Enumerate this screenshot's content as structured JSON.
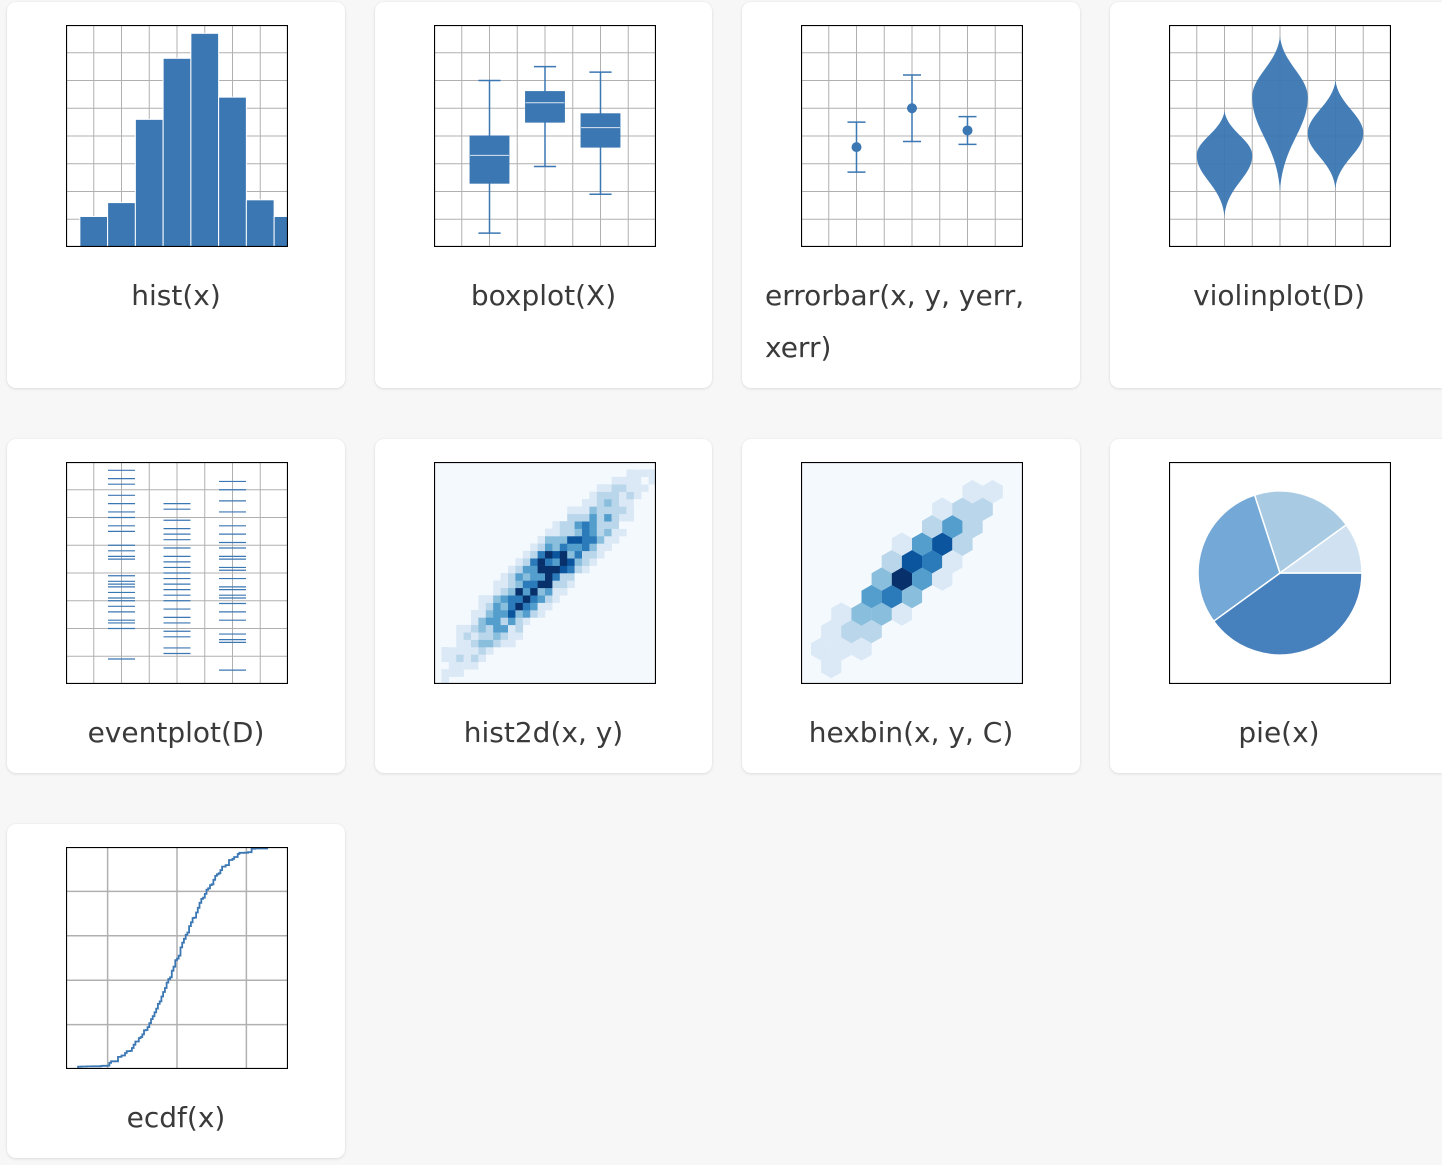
{
  "colors": {
    "primary": "#3b77b3",
    "grid": "#b0b0b0",
    "frame": "#000000",
    "pie": [
      "#4680bd",
      "#74a8d6",
      "#a8cbe3",
      "#d0e2f2"
    ],
    "blues": [
      "#f4f9fe",
      "#dbe9f6",
      "#bad6eb",
      "#89bedc",
      "#539ecd",
      "#2b7bba",
      "#0b559f",
      "#08306b"
    ]
  },
  "gallery": [
    {
      "id": "hist",
      "caption": "hist(x)",
      "icon": "histogram-chart-icon"
    },
    {
      "id": "boxplot",
      "caption": "boxplot(X)",
      "icon": "boxplot-chart-icon"
    },
    {
      "id": "errorbar",
      "caption": "errorbar(x, y, yerr, xerr)",
      "icon": "errorbar-chart-icon"
    },
    {
      "id": "violinplot",
      "caption": "violinplot(D)",
      "icon": "violin-chart-icon"
    },
    {
      "id": "eventplot",
      "caption": "eventplot(D)",
      "icon": "eventplot-chart-icon"
    },
    {
      "id": "hist2d",
      "caption": "hist2d(x, y)",
      "icon": "hist2d-chart-icon"
    },
    {
      "id": "hexbin",
      "caption": "hexbin(x, y, C)",
      "icon": "hexbin-chart-icon"
    },
    {
      "id": "pie",
      "caption": "pie(x)",
      "icon": "pie-chart-icon"
    },
    {
      "id": "ecdf",
      "caption": "ecdf(x)",
      "icon": "ecdf-chart-icon"
    }
  ],
  "chart_data": [
    {
      "type": "bar",
      "name": "hist",
      "bin_edges": [
        0.5,
        1.5,
        2.5,
        3.5,
        4.5,
        5.5,
        6.5,
        7.5,
        8.5
      ],
      "values": [
        1.1,
        1.6,
        4.6,
        6.8,
        7.7,
        5.4,
        1.7,
        1.1
      ],
      "xlim": [
        0,
        8
      ],
      "ylim": [
        0,
        8
      ],
      "grid": true
    },
    {
      "type": "boxplot",
      "name": "boxplot",
      "boxes": [
        {
          "x": 2,
          "whislo": 0.5,
          "q1": 2.3,
          "med": 3.3,
          "q3": 4.0,
          "whishi": 6.0
        },
        {
          "x": 4,
          "whislo": 2.9,
          "q1": 4.5,
          "med": 5.2,
          "q3": 5.6,
          "whishi": 6.5
        },
        {
          "x": 6,
          "whislo": 1.9,
          "q1": 3.6,
          "med": 4.3,
          "q3": 4.8,
          "whishi": 6.3
        }
      ],
      "xlim": [
        0,
        8
      ],
      "ylim": [
        0,
        8
      ],
      "grid": true
    },
    {
      "type": "errorbar",
      "name": "errorbar",
      "points": [
        {
          "x": 2,
          "y": 3.6,
          "yerr": 0.9
        },
        {
          "x": 4,
          "y": 5.0,
          "yerr": 1.2
        },
        {
          "x": 6,
          "y": 4.2,
          "yerr": 0.5
        }
      ],
      "xlim": [
        0,
        8
      ],
      "ylim": [
        0,
        8
      ],
      "grid": true
    },
    {
      "type": "violin",
      "name": "violinplot",
      "violins": [
        {
          "x": 2,
          "ymin": 1.1,
          "ymax": 4.9,
          "peak": 3.3,
          "halfwidth": 1.0
        },
        {
          "x": 4,
          "ymin": 2.0,
          "ymax": 7.6,
          "peak": 5.4,
          "halfwidth": 1.0
        },
        {
          "x": 6,
          "ymin": 2.1,
          "ymax": 6.0,
          "peak": 4.1,
          "halfwidth": 1.0
        }
      ],
      "xlim": [
        0,
        8
      ],
      "ylim": [
        0,
        8
      ],
      "grid": true
    },
    {
      "type": "eventplot",
      "name": "eventplot",
      "series": [
        {
          "x": 2,
          "events": [
            0.9,
            2.0,
            2.2,
            2.3,
            2.6,
            2.8,
            3.0,
            3.1,
            3.3,
            3.5,
            3.6,
            3.7,
            3.9,
            4.5,
            4.6,
            4.8,
            5.0,
            5.5,
            5.7,
            6.0,
            6.2,
            6.5,
            6.8,
            7.2,
            7.4,
            7.7
          ]
        },
        {
          "x": 4,
          "events": [
            1.1,
            1.3,
            1.7,
            1.9,
            2.2,
            2.4,
            2.7,
            3.0,
            3.2,
            3.4,
            3.6,
            3.8,
            4.0,
            4.2,
            4.4,
            4.6,
            4.9,
            5.2,
            5.4,
            5.6,
            5.9,
            6.3,
            6.5
          ]
        },
        {
          "x": 6,
          "events": [
            0.5,
            1.5,
            1.6,
            1.8,
            2.3,
            2.6,
            2.9,
            3.1,
            3.2,
            3.4,
            3.5,
            3.8,
            4.1,
            4.2,
            4.5,
            4.6,
            4.9,
            5.1,
            5.4,
            5.7,
            6.2,
            6.6,
            7.0,
            7.3
          ]
        }
      ],
      "xlim": [
        0,
        8
      ],
      "ylim": [
        0,
        8
      ],
      "grid": true
    },
    {
      "type": "heatmap",
      "name": "hist2d",
      "description_axis": "linear band along the diagonal, densest near the center",
      "xlim": [
        -3,
        3
      ],
      "ylim": [
        -3,
        3
      ],
      "bins": 30,
      "band_slope": 1.0,
      "band_width": 0.35,
      "grid": false
    },
    {
      "type": "heatmap",
      "name": "hexbin",
      "xlim": [
        -3,
        3
      ],
      "ylim": [
        -3,
        3
      ],
      "gridsize": 11,
      "band_slope": 1.0,
      "band_width": 0.35,
      "grid": false
    },
    {
      "type": "pie",
      "name": "pie",
      "values": [
        40,
        30,
        20,
        10
      ],
      "startangle_deg": 0
    },
    {
      "type": "line",
      "name": "ecdf",
      "x_range": [
        -3,
        3
      ],
      "y_range": [
        0,
        1
      ],
      "xlim": [
        -3.2,
        3.2
      ],
      "ylim": [
        0,
        1.0
      ],
      "grid": true,
      "xticks": [
        -2,
        0,
        2,
        4
      ],
      "yticks": [
        0.2,
        0.4,
        0.6,
        0.8
      ]
    }
  ]
}
